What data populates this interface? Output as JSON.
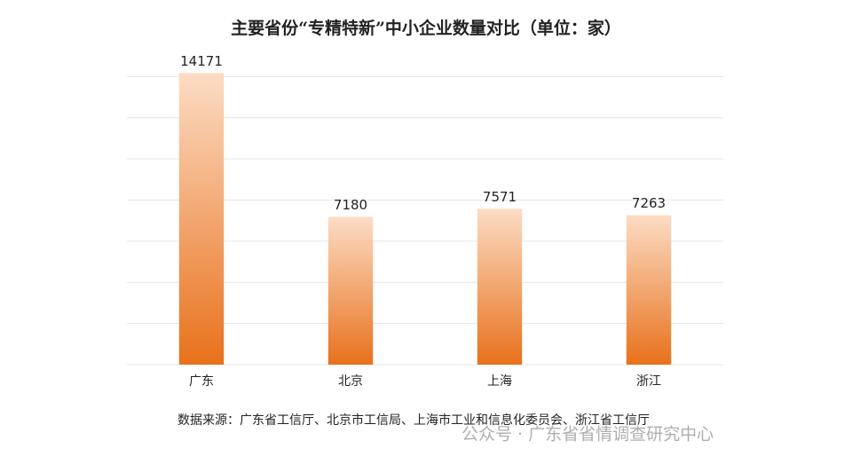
{
  "chart_data": {
    "type": "bar",
    "title": "主要省份“专精特新”中小企业数量对比（单位：家）",
    "categories": [
      "广东",
      "北京",
      "上海",
      "浙江"
    ],
    "values": [
      14171,
      7180,
      7571,
      7263
    ],
    "color": "#e8711c",
    "ylim": [
      0,
      16000
    ],
    "yticks": [
      0,
      2000,
      4000,
      6000,
      8000,
      10000,
      12000,
      14000
    ],
    "grid": true,
    "source": "数据来源：广东省工信厅、北京市工信局、上海市工业和信息化委员会、浙江省工信厅",
    "watermark": "公众号 · 广东省省情调查研究中心"
  }
}
